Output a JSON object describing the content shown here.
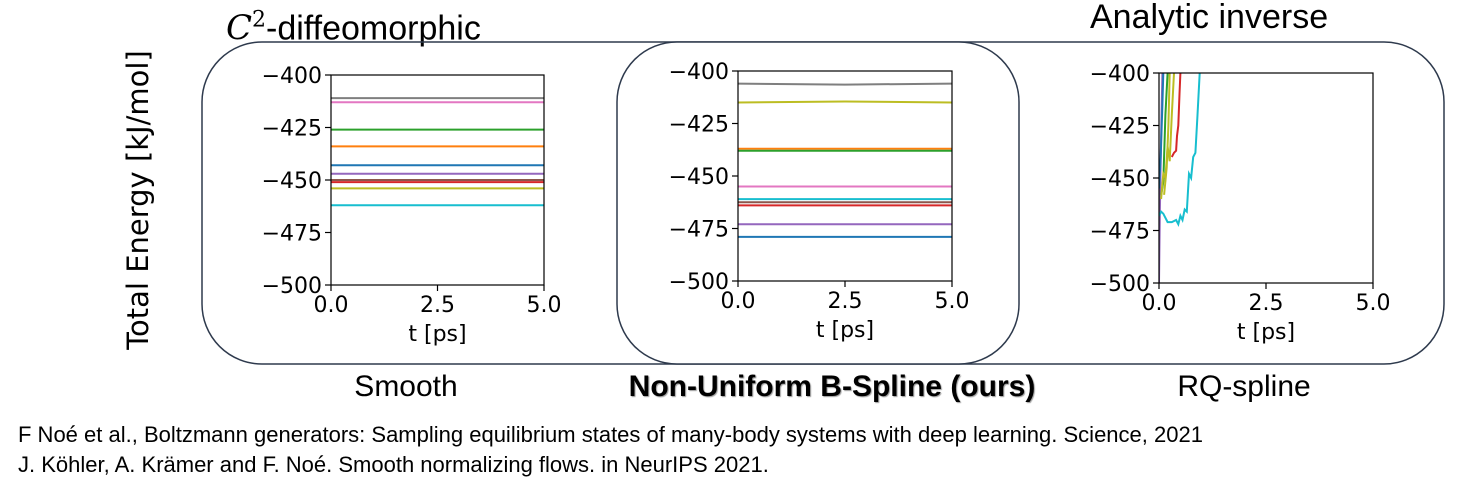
{
  "header": {
    "left_title": "-diffeomorphic",
    "left_math_base": "C",
    "left_math_sup": "2",
    "right_title": "Analytic inverse"
  },
  "y_axis_label": "Total Energy [kJ/mol]",
  "panel_labels": [
    "Smooth",
    "Non-Uniform B-Spline (ours)",
    "RQ-spline"
  ],
  "references": [
    "F Noé et al., Boltzmann generators: Sampling equilibrium states of many-body systems with deep learning. Science, 2021",
    "J. Köhler, A. Krämer and F. Noé. Smooth normalizing flows. in NeurIPS 2021."
  ],
  "colors": {
    "box_border": "#2e3a4d",
    "series": [
      "#1f77b4",
      "#ff7f0e",
      "#2ca02c",
      "#d62728",
      "#9467bd",
      "#8c564b",
      "#e377c2",
      "#7f7f7f",
      "#bcbd22",
      "#17becf"
    ]
  },
  "chart_data": [
    {
      "type": "line",
      "title": "Smooth",
      "xlabel": "t [ps]",
      "ylabel": "Total Energy [kJ/mol]",
      "xlim": [
        0,
        5
      ],
      "ylim": [
        -500,
        -400
      ],
      "xticks": [
        "0.0",
        "2.5",
        "5.0"
      ],
      "yticks": [
        "−400",
        "−425",
        "−450",
        "−475",
        "−500"
      ],
      "series": [
        {
          "color": "#7f7f7f",
          "x": [
            0,
            5
          ],
          "y": [
            -411,
            -411
          ]
        },
        {
          "color": "#e377c2",
          "x": [
            0,
            5
          ],
          "y": [
            -413,
            -413
          ]
        },
        {
          "color": "#2ca02c",
          "x": [
            0,
            5
          ],
          "y": [
            -426,
            -426
          ]
        },
        {
          "color": "#ff7f0e",
          "x": [
            0,
            5
          ],
          "y": [
            -434,
            -434
          ]
        },
        {
          "color": "#1f77b4",
          "x": [
            0,
            5
          ],
          "y": [
            -443,
            -443
          ]
        },
        {
          "color": "#9467bd",
          "x": [
            0,
            5
          ],
          "y": [
            -447,
            -447
          ]
        },
        {
          "color": "#8c564b",
          "x": [
            0,
            5
          ],
          "y": [
            -450,
            -450
          ]
        },
        {
          "color": "#d62728",
          "x": [
            0,
            5
          ],
          "y": [
            -451,
            -451
          ]
        },
        {
          "color": "#bcbd22",
          "x": [
            0,
            5
          ],
          "y": [
            -454,
            -454
          ]
        },
        {
          "color": "#17becf",
          "x": [
            0,
            5
          ],
          "y": [
            -462,
            -462
          ]
        }
      ]
    },
    {
      "type": "line",
      "title": "Non-Uniform B-Spline (ours)",
      "xlabel": "t [ps]",
      "ylabel": "Total Energy [kJ/mol]",
      "xlim": [
        0,
        5
      ],
      "ylim": [
        -500,
        -400
      ],
      "xticks": [
        "0.0",
        "2.5",
        "5.0"
      ],
      "yticks": [
        "−400",
        "−425",
        "−450",
        "−475",
        "−500"
      ],
      "series": [
        {
          "color": "#7f7f7f",
          "x": [
            0,
            2.5,
            5
          ],
          "y": [
            -406,
            -406.5,
            -406
          ]
        },
        {
          "color": "#bcbd22",
          "x": [
            0,
            2.5,
            5
          ],
          "y": [
            -415,
            -414.5,
            -415
          ]
        },
        {
          "color": "#ff7f0e",
          "x": [
            0,
            5
          ],
          "y": [
            -437,
            -437
          ]
        },
        {
          "color": "#2ca02c",
          "x": [
            0,
            5
          ],
          "y": [
            -438,
            -438
          ]
        },
        {
          "color": "#e377c2",
          "x": [
            0,
            5
          ],
          "y": [
            -455,
            -455
          ]
        },
        {
          "color": "#17becf",
          "x": [
            0,
            5
          ],
          "y": [
            -461,
            -461
          ]
        },
        {
          "color": "#8c564b",
          "x": [
            0,
            5
          ],
          "y": [
            -462.5,
            -462.5
          ]
        },
        {
          "color": "#d62728",
          "x": [
            0,
            5
          ],
          "y": [
            -464,
            -464
          ]
        },
        {
          "color": "#9467bd",
          "x": [
            0,
            5
          ],
          "y": [
            -473,
            -473
          ]
        },
        {
          "color": "#1f77b4",
          "x": [
            0,
            5
          ],
          "y": [
            -479,
            -479
          ]
        }
      ]
    },
    {
      "type": "line",
      "title": "RQ-spline",
      "xlabel": "t [ps]",
      "ylabel": "Total Energy [kJ/mol]",
      "xlim": [
        0,
        5
      ],
      "ylim": [
        -500,
        -400
      ],
      "xticks": [
        "0.0",
        "2.5",
        "5.0"
      ],
      "yticks": [
        "−400",
        "−425",
        "−450",
        "−475",
        "−500"
      ],
      "series": [
        {
          "color": "#9467bd",
          "x": [
            0,
            0.02,
            0.05,
            0.08
          ],
          "y": [
            -500,
            -465,
            -430,
            -400
          ]
        },
        {
          "color": "#1f77b4",
          "x": [
            0,
            0.04,
            0.08,
            0.1
          ],
          "y": [
            -455,
            -440,
            -415,
            -400
          ]
        },
        {
          "color": "#2ca02c",
          "x": [
            0.05,
            0.1,
            0.15,
            0.2
          ],
          "y": [
            -458,
            -452,
            -420,
            -400
          ]
        },
        {
          "color": "#bcbd22",
          "x": [
            0.05,
            0.1,
            0.15,
            0.2,
            0.25,
            0.3,
            0.35
          ],
          "y": [
            -460,
            -448,
            -450,
            -435,
            -442,
            -420,
            -400
          ]
        },
        {
          "color": "#bcbd22",
          "x": [
            0.12,
            0.18,
            0.22,
            0.25
          ],
          "y": [
            -458,
            -445,
            -425,
            -400
          ]
        },
        {
          "color": "#d62728",
          "x": [
            0.3,
            0.35,
            0.4,
            0.42,
            0.45,
            0.48,
            0.5
          ],
          "y": [
            -440,
            -438,
            -437,
            -430,
            -425,
            -410,
            -400
          ]
        },
        {
          "color": "#17becf",
          "x": [
            0,
            0.05,
            0.1,
            0.2,
            0.3,
            0.4,
            0.45,
            0.5,
            0.55,
            0.6,
            0.65,
            0.7,
            0.75,
            0.8,
            0.85,
            0.9,
            0.95
          ],
          "y": [
            -468,
            -466,
            -467,
            -471,
            -471,
            -470,
            -472,
            -468,
            -470,
            -465,
            -466,
            -448,
            -450,
            -440,
            -438,
            -420,
            -400
          ]
        }
      ]
    }
  ]
}
